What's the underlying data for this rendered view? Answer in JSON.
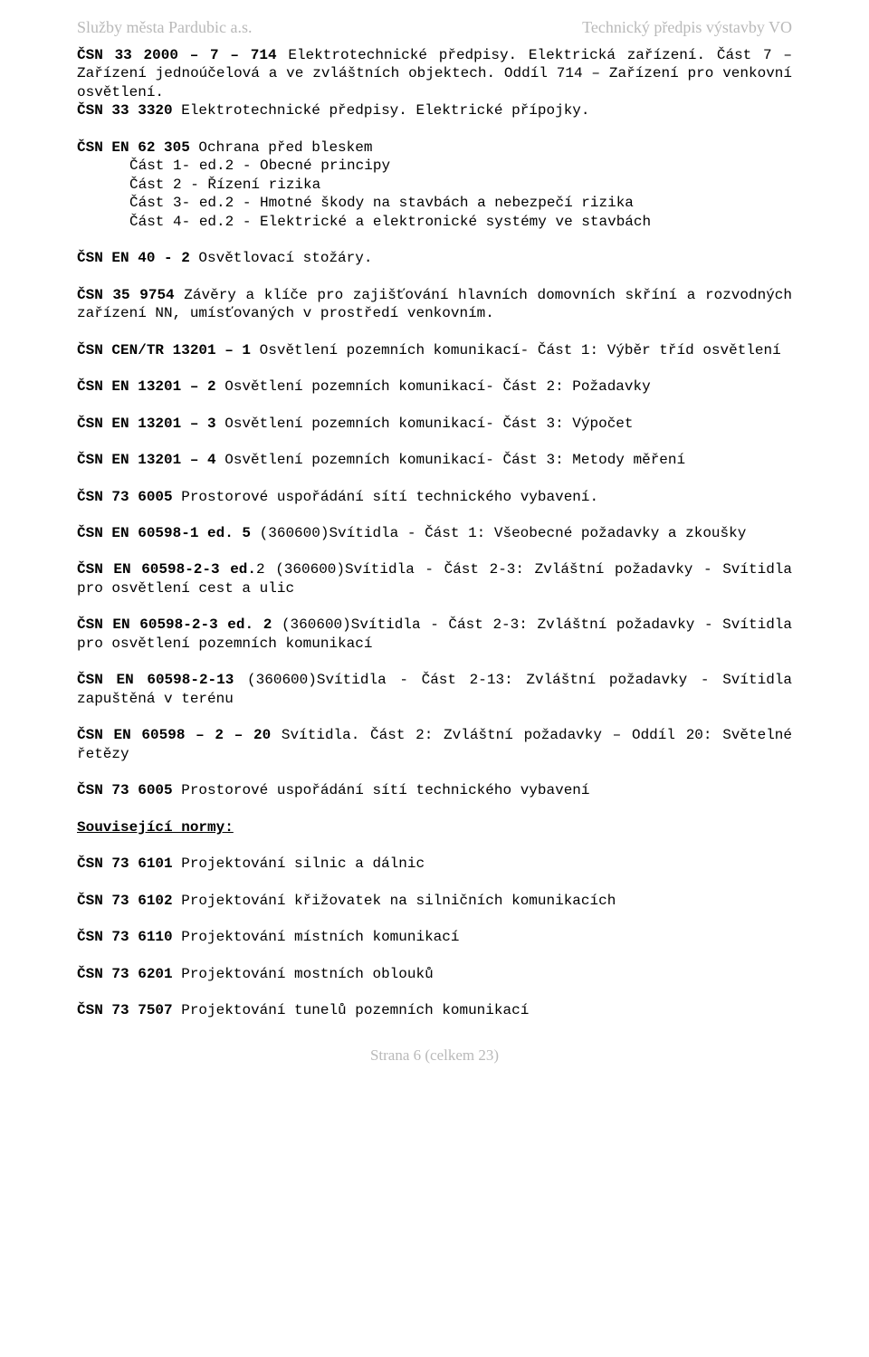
{
  "header": {
    "left": "Služby města Pardubic a.s.",
    "right": "Technický předpis výstavby VO"
  },
  "p1": {
    "l1a": "ČSN 33 2000 – 7 – 714",
    "l1b": " Elektrotechnické předpisy. Elektrická zařízení.",
    "l2": "Část 7 – Zařízení jednoúčelová a ve zvláštních objektech. Oddíl 714 – Zařízení pro venkovní osvětlení.",
    "l3a": "ČSN 33 3320",
    "l3b": " Elektrotechnické předpisy. Elektrické přípojky."
  },
  "p2": {
    "l1a": "ČSN EN 62 305",
    "l1b": " Ochrana před bleskem",
    "l2": "Část 1- ed.2 - Obecné principy",
    "l3": "Část 2 - Řízení rizika",
    "l4": "Část 3- ed.2 - Hmotné škody na stavbách a nebezpečí rizika",
    "l5": "Část 4- ed.2 - Elektrické a elektronické systémy ve stavbách"
  },
  "p3": {
    "a": "ČSN EN 40 - 2",
    "b": " Osvětlovací stožáry."
  },
  "p4": {
    "a": "ČSN 35 9754",
    "b": " Závěry a klíče pro zajišťování hlavních domovních skříní a rozvodných zařízení NN, umísťovaných v prostředí venkovním."
  },
  "p5": {
    "a": "ČSN CEN/TR 13201 – 1",
    "b": " Osvětlení pozemních komunikací- Část 1: Výběr tříd osvětlení"
  },
  "p6": {
    "a": "ČSN EN 13201 – 2",
    "b": " Osvětlení pozemních komunikací- Část 2: Požadavky"
  },
  "p7": {
    "a": "ČSN EN 13201 – 3",
    "b": " Osvětlení pozemních komunikací- Část 3: Výpočet"
  },
  "p8": {
    "a": "ČSN EN 13201 – 4",
    "b": " Osvětlení pozemních komunikací- Část 3: Metody měření"
  },
  "p9": {
    "a": "ČSN 73 6005",
    "b": " Prostorové uspořádání sítí technického vybavení."
  },
  "p10": {
    "a": "ČSN EN 60598-1 ed. 5",
    "b": " (360600)Svítidla - Část 1: Všeobecné požadavky a zkoušky"
  },
  "p11": {
    "a": "ČSN EN 60598-2-3 ed.",
    "b": "2 (360600)Svítidla - Část 2-3: Zvláštní požadavky - Svítidla pro osvětlení cest a ulic"
  },
  "p12": {
    "a": "ČSN EN 60598-2-3 ed. 2",
    "b": " (360600)Svítidla - Část 2-3: Zvláštní požadavky - Svítidla pro osvětlení pozemních komunikací"
  },
  "p13": {
    "a": "ČSN EN 60598-2-13",
    "b": " (360600)Svítidla - Část 2-13: Zvláštní požadavky - Svítidla zapuštěná v terénu"
  },
  "p14": {
    "a": "ČSN EN 60598 – 2 – 20",
    "b": " Svítidla. Část 2: Zvláštní požadavky – Oddíl 20: Světelné řetězy"
  },
  "p15": {
    "a": "ČSN 73 6005",
    "b": " Prostorové uspořádání sítí technického vybavení"
  },
  "relhead": "Související normy:",
  "r1": {
    "a": "ČSN 73 6101",
    "b": " Projektování silnic a dálnic"
  },
  "r2": {
    "a": "ČSN 73 6102",
    "b": " Projektování křižovatek na silničních komunikacích"
  },
  "r3": {
    "a": "ČSN 73 6110",
    "b": " Projektování místních komunikací"
  },
  "r4": {
    "a": "ČSN 73 6201",
    "b": " Projektování mostních oblouků"
  },
  "r5": {
    "a": "ČSN 73 7507",
    "b": " Projektování tunelů pozemních komunikací"
  },
  "footer": "Strana 6 (celkem 23)"
}
